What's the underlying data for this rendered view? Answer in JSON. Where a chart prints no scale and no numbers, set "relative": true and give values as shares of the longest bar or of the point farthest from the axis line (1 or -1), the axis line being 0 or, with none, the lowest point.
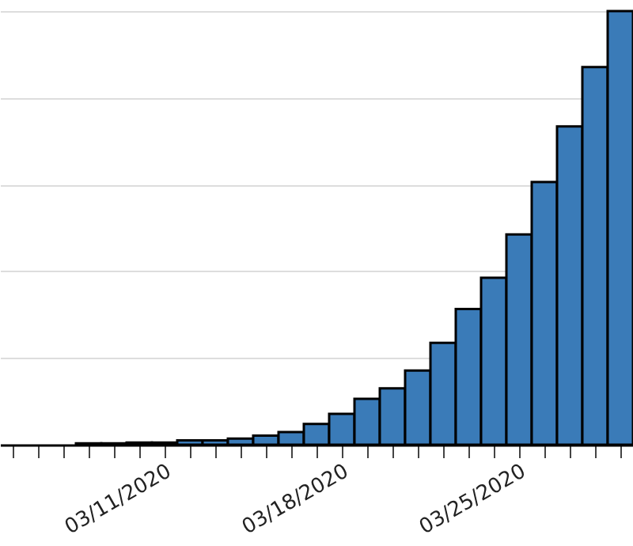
{
  "chart_data": {
    "type": "bar",
    "relative": true,
    "grid": "y",
    "color": "#3a7bb8",
    "categories": [
      null,
      null,
      null,
      null,
      null,
      null,
      "03/11/2020",
      null,
      null,
      null,
      null,
      null,
      null,
      "03/18/2020",
      null,
      null,
      null,
      null,
      null,
      null,
      "03/25/2020",
      null,
      null,
      null,
      null
    ],
    "values": [
      0,
      0,
      0,
      0.003,
      0.003,
      0.005,
      0.005,
      0.01,
      0.01,
      0.014,
      0.021,
      0.029,
      0.048,
      0.071,
      0.106,
      0.13,
      0.171,
      0.235,
      0.313,
      0.385,
      0.485,
      0.606,
      0.734,
      0.871,
      1
    ]
  }
}
